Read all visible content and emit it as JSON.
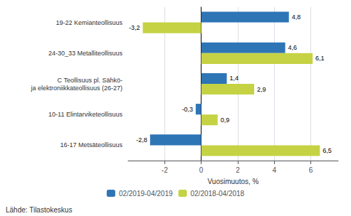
{
  "chart_data": {
    "type": "bar",
    "orientation": "horizontal",
    "categories": [
      "19-22 Kemianteollisuus",
      "24-30_33 Metalliteollisuus",
      "C Teollisuus pl. Sähkö-\nja elektroniikkateollisuus (26-27)",
      "10-11 Elintarviketeollisuus",
      "16-17 Metsäteollisuus"
    ],
    "series": [
      {
        "name": "02/2019-04/2019",
        "color": "#2E75B6",
        "values": [
          4.8,
          4.6,
          1.4,
          -0.3,
          -2.8
        ],
        "value_labels": [
          "4,8",
          "4,6",
          "1,4",
          "-0,3",
          "-2,8"
        ]
      },
      {
        "name": "02/2018-04/2018",
        "color": "#C5D244",
        "values": [
          -3.2,
          6.1,
          2.9,
          0.9,
          6.5
        ],
        "value_labels": [
          "-3,2",
          "6,1",
          "2,9",
          "0,9",
          "6,5"
        ]
      }
    ],
    "xlabel": "Vuosimuutos, %",
    "xlim": [
      -4,
      7.5
    ],
    "xticks": [
      -2,
      0,
      2,
      4,
      6
    ],
    "grid": true,
    "legend": "bottom",
    "data_labels": true,
    "annotations": [
      "Lähde: Tilastokeskus"
    ]
  }
}
